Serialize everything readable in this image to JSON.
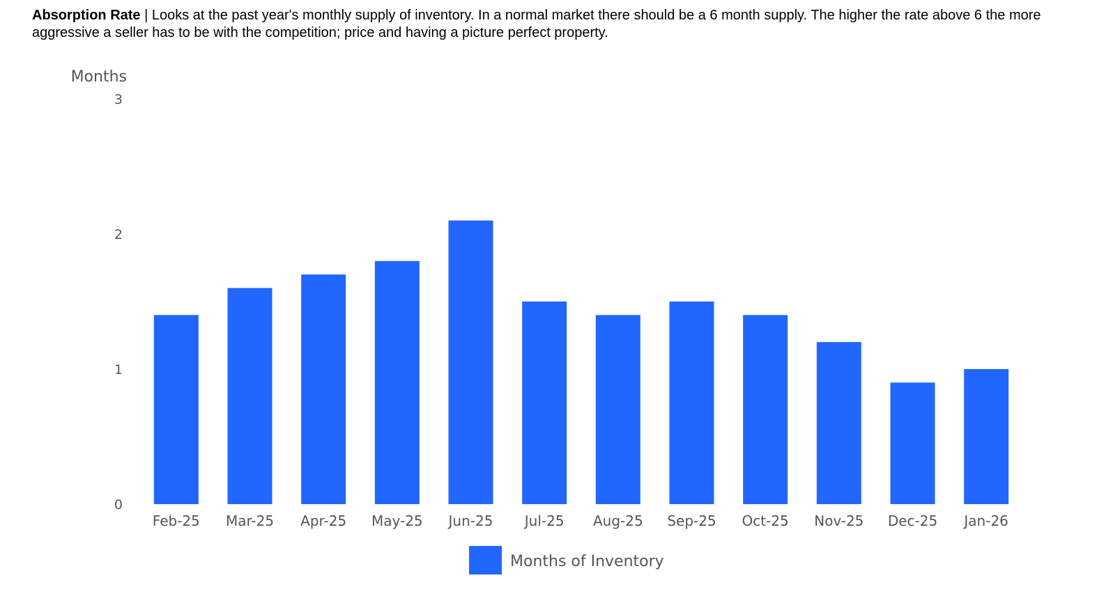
{
  "header": {
    "title": "Absorption Rate",
    "separator": " | ",
    "description": "Looks at the past year's monthly supply of inventory. In a normal market there should be a 6 month supply. The higher the rate above 6 the more aggressive a seller has to be with the competition; price and having a picture perfect property."
  },
  "chart_data": {
    "type": "bar",
    "title": "",
    "xlabel": "",
    "ylabel": "Months",
    "ylim": [
      0,
      3
    ],
    "yticks": [
      0,
      1,
      2,
      3
    ],
    "grid": false,
    "legend_position": "bottom",
    "categories": [
      "Feb-25",
      "Mar-25",
      "Apr-25",
      "May-25",
      "Jun-25",
      "Jul-25",
      "Aug-25",
      "Sep-25",
      "Oct-25",
      "Nov-25",
      "Dec-25",
      "Jan-26"
    ],
    "series": [
      {
        "name": "Months of Inventory",
        "color": "#2167ff",
        "values": [
          1.4,
          1.6,
          1.7,
          1.8,
          2.1,
          1.5,
          1.4,
          1.5,
          1.4,
          1.2,
          0.9,
          1.0
        ]
      }
    ]
  }
}
